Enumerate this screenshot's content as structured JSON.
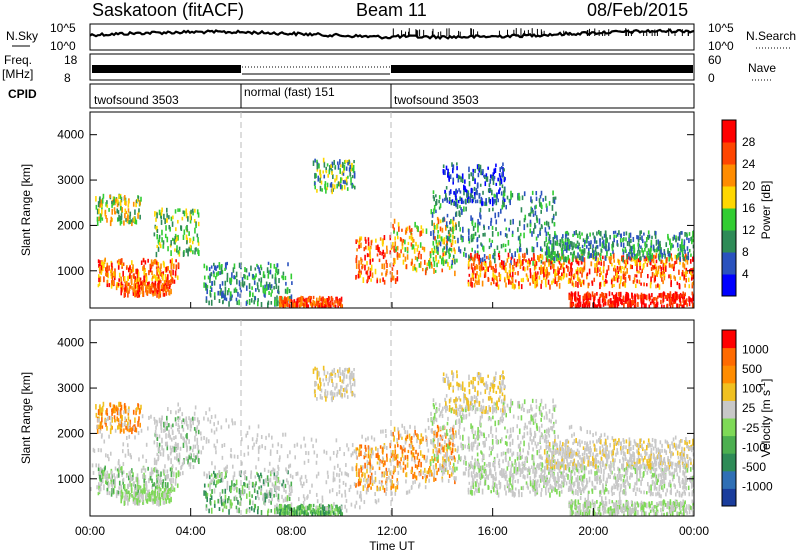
{
  "header": {
    "station": "Saskatoon (fitACF)",
    "beam": "Beam 11",
    "date": "08/Feb/2015"
  },
  "top_panels": {
    "nsky_label": "N.Sky",
    "nsky_ticks": [
      "10^5",
      "10^0"
    ],
    "nsearch_label": "N.Search",
    "freq_label": "Freq.",
    "freq_unit": "[MHz]",
    "freq_ticks": [
      "18",
      "8"
    ],
    "nave_label": "Nave",
    "nave_ticks": [
      "60",
      "0"
    ],
    "cpid_label": "CPID",
    "cpid_segments": [
      {
        "label": "twofsound 3503",
        "start": 0,
        "end": 6
      },
      {
        "label": "normal (fast) 151",
        "start": 6,
        "end": 12
      },
      {
        "label": "twofsound 3503",
        "start": 12,
        "end": 24
      }
    ]
  },
  "chart_data": [
    {
      "type": "heatmap",
      "name": "power",
      "ylabel": "Slant Range [km]",
      "xlim": [
        0,
        24
      ],
      "ylim": [
        180,
        4500
      ],
      "yticks": [
        "1000",
        "2000",
        "3000",
        "4000"
      ],
      "colorbar": {
        "label": "Power [dB]",
        "ticks": [
          "28",
          "24",
          "20",
          "16",
          "12",
          "8",
          "4"
        ],
        "colors": [
          "#0000ff",
          "#2a52be",
          "#2e8b57",
          "#32cd32",
          "#ffd700",
          "#ff8c00",
          "#ff4500",
          "#ff0000"
        ]
      }
    },
    {
      "type": "heatmap",
      "name": "velocity",
      "ylabel": "Slant Range [km]",
      "xlabel": "Time UT",
      "xlim": [
        0,
        24
      ],
      "ylim": [
        180,
        4500
      ],
      "yticks": [
        "1000",
        "2000",
        "3000",
        "4000"
      ],
      "xticks": [
        "00:00",
        "04:00",
        "08:00",
        "12:00",
        "16:00",
        "20:00",
        "00:00"
      ],
      "colorbar": {
        "label": "Velocity [m s",
        "label_sup": "-1",
        "label_close": "]",
        "ticks": [
          "1000",
          "500",
          "100",
          "25",
          "-25",
          "-100",
          "-500",
          "-1000"
        ],
        "colors": [
          "#1a3d9c",
          "#2f6fb5",
          "#2e8b57",
          "#4caf50",
          "#7ed957",
          "#c8c8c8",
          "#f0c020",
          "#ff8c00",
          "#ff6a00",
          "#ff0000"
        ]
      }
    }
  ]
}
